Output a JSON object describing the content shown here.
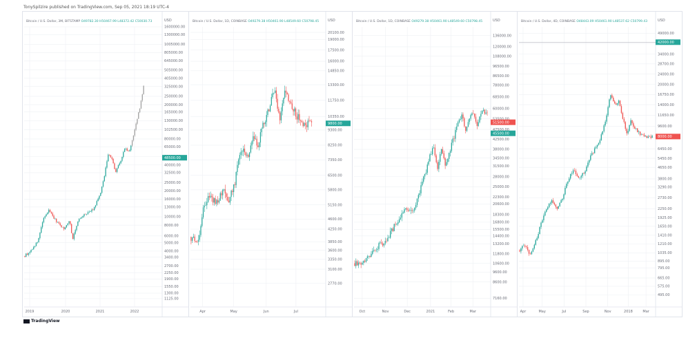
{
  "header": {
    "text": "TonySpilzire published on TradingView.com, Sep 05, 2021 18:19 UTC-4"
  },
  "footer": {
    "logo_text": "TradingView"
  },
  "colors": {
    "up": "#26a69a",
    "down": "#ef5350",
    "neutral": "#9e9e9e",
    "grid": "#eef0f4",
    "axis_text": "#6a6d78"
  },
  "chart_data": [
    {
      "type": "candlestick",
      "legend": {
        "symbol": "Bitcoin / U.S. Dollar, 3M, BITSTAMP",
        "ohlc": "O49782.30  H50467.99  L48372.42  C50030.73"
      },
      "scale": "log",
      "ylim": [
        900,
        1600000
      ],
      "y_ticks": [
        1125,
        1300,
        1550,
        1900,
        2250,
        2700,
        3400,
        4000,
        5000,
        6000,
        8000,
        10000,
        13000,
        16000,
        20000,
        25000,
        32500,
        40000,
        50000,
        65000,
        80000,
        102500,
        130000,
        165000,
        200000,
        250000,
        325000,
        405000,
        505000,
        645000,
        805000,
        1005000,
        1300000,
        1600000
      ],
      "y_tick_labels": [
        "1125.00",
        "1300.00",
        "1550.00",
        "1900.00",
        "2250.00",
        "2700.00",
        "3400.00",
        "4000.00",
        "5000.00",
        "6000.00",
        "8000.00",
        "10000.00",
        "13000.00",
        "16000.00",
        "20000.00",
        "25000.00",
        "32500.00",
        "40000.00",
        "50000.00",
        "65000.00",
        "80000.00",
        "102500.00",
        "130000.00",
        "165000.00",
        "200000.00",
        "250000.00",
        "325000.00",
        "405000.00",
        "505000.00",
        "645000.00",
        "805000.00",
        "1005000.00",
        "1300000.00",
        "1600000.00"
      ],
      "y_unit": "USD",
      "x_labels": [
        "2019",
        "2020",
        "2021",
        "2022"
      ],
      "x_label_positions": [
        0.04,
        0.3,
        0.55,
        0.8
      ],
      "last_price": 48500,
      "last_price_label": "48500.00",
      "last_price_color": "#26a69a",
      "path": [
        {
          "t": 0,
          "p": 3500
        },
        {
          "t": 0.04,
          "p": 3900
        },
        {
          "t": 0.1,
          "p": 5200
        },
        {
          "t": 0.14,
          "p": 9500
        },
        {
          "t": 0.18,
          "p": 12000
        },
        {
          "t": 0.23,
          "p": 9000
        },
        {
          "t": 0.29,
          "p": 7200
        },
        {
          "t": 0.33,
          "p": 9200
        },
        {
          "t": 0.35,
          "p": 5500
        },
        {
          "t": 0.39,
          "p": 9000
        },
        {
          "t": 0.45,
          "p": 11000
        },
        {
          "t": 0.5,
          "p": 12000
        },
        {
          "t": 0.55,
          "p": 18000
        },
        {
          "t": 0.58,
          "p": 29000
        },
        {
          "t": 0.61,
          "p": 55000
        },
        {
          "t": 0.64,
          "p": 45000
        },
        {
          "t": 0.66,
          "p": 33000
        },
        {
          "t": 0.7,
          "p": 45000
        },
        {
          "t": 0.73,
          "p": 63000
        },
        {
          "t": 0.76,
          "p": 55000
        },
        {
          "t": 0.8,
          "p": 100000
        },
        {
          "t": 0.84,
          "p": 190000
        },
        {
          "t": 0.87,
          "p": 360000
        }
      ],
      "projection_start": 0.78,
      "candle_count": 95
    },
    {
      "type": "candlestick",
      "legend": {
        "symbol": "Bitcoin / U.S. Dollar, 1D, COINBASE",
        "ohlc": "O49279.38  H50461.90  L48549.60  C50798.45"
      },
      "scale": "log",
      "ylim": [
        2300,
        21000
      ],
      "y_ticks": [
        2770,
        3100,
        3350,
        3600,
        3850,
        4250,
        4600,
        5150,
        5800,
        6500,
        7350,
        8250,
        9300,
        10350,
        11750,
        13300,
        14850,
        16000,
        17500,
        19000,
        20100
      ],
      "y_tick_labels": [
        "2770.00",
        "3100.00",
        "3350.00",
        "3600.00",
        "3850.00",
        "4250.00",
        "4600.00",
        "5150.00",
        "5800.00",
        "6500.00",
        "7350.00",
        "8250.00",
        "9300.00",
        "10350.00",
        "11750.00",
        "13300.00",
        "14850.00",
        "16000.00",
        "17500.00",
        "19000.00",
        "20100.00"
      ],
      "y_unit": "USD",
      "x_labels": [
        "Apr",
        "May",
        "Jun",
        "Jul"
      ],
      "x_label_positions": [
        0.09,
        0.32,
        0.56,
        0.78
      ],
      "last_price": 9800,
      "last_price_label": "9800.00",
      "last_price_color": "#26a69a",
      "path": [
        {
          "t": 0,
          "p": 4000
        },
        {
          "t": 0.06,
          "p": 3950
        },
        {
          "t": 0.1,
          "p": 5200
        },
        {
          "t": 0.13,
          "p": 5400
        },
        {
          "t": 0.2,
          "p": 5300
        },
        {
          "t": 0.24,
          "p": 5800
        },
        {
          "t": 0.28,
          "p": 5300
        },
        {
          "t": 0.33,
          "p": 6100
        },
        {
          "t": 0.36,
          "p": 7800
        },
        {
          "t": 0.4,
          "p": 8000
        },
        {
          "t": 0.43,
          "p": 7400
        },
        {
          "t": 0.46,
          "p": 8700
        },
        {
          "t": 0.5,
          "p": 8300
        },
        {
          "t": 0.53,
          "p": 9500
        },
        {
          "t": 0.58,
          "p": 11000
        },
        {
          "t": 0.62,
          "p": 13000
        },
        {
          "t": 0.66,
          "p": 10000
        },
        {
          "t": 0.7,
          "p": 12800
        },
        {
          "t": 0.74,
          "p": 11300
        },
        {
          "t": 0.78,
          "p": 10500
        },
        {
          "t": 0.84,
          "p": 9800
        },
        {
          "t": 0.9,
          "p": 9700
        }
      ],
      "candle_count": 100
    },
    {
      "type": "candlestick",
      "legend": {
        "symbol": "Bitcoin / U.S. Dollar, 1D, COINBASE",
        "ohlc": "O49279.38  H50461.90  L48549.60  C50798.45"
      },
      "scale": "log",
      "ylim": [
        6500,
        150000
      ],
      "y_ticks": [
        7160,
        8600,
        9600,
        10600,
        11800,
        13200,
        14400,
        15500,
        16800,
        18300,
        20600,
        22300,
        25000,
        28000,
        31500,
        34500,
        38000,
        42500,
        47500,
        53500,
        60000,
        68500,
        78000,
        86500,
        96500,
        108000,
        120000,
        136000
      ],
      "y_tick_labels": [
        "7160.00",
        "8600.00",
        "9600.00",
        "10600.00",
        "11800.00",
        "13200.00",
        "14400.00",
        "15500.00",
        "16800.00",
        "18300.00",
        "20600.00",
        "22300.00",
        "25000.00",
        "28000.00",
        "31500.00",
        "34500.00",
        "38000.00",
        "42500.00",
        "47500.00",
        "53500.00",
        "60000.00",
        "68500.00",
        "78000.00",
        "86500.00",
        "96500.00",
        "108000.00",
        "120000.00",
        "136000.00"
      ],
      "y_unit": "USD",
      "x_labels": [
        "Oct",
        "Nov",
        "Dec",
        "2021",
        "Feb",
        "Mar"
      ],
      "x_label_positions": [
        0.06,
        0.23,
        0.39,
        0.56,
        0.71,
        0.87
      ],
      "last_price": 51500,
      "last_price_label": "51500.00",
      "last_price_color": "#ef5350",
      "last_price_2": 45500,
      "last_price_2_label": "45500.00",
      "last_price_2_color": "#26a69a",
      "path": [
        {
          "t": 0,
          "p": 10600
        },
        {
          "t": 0.05,
          "p": 10500
        },
        {
          "t": 0.12,
          "p": 11500
        },
        {
          "t": 0.18,
          "p": 13000
        },
        {
          "t": 0.23,
          "p": 13500
        },
        {
          "t": 0.28,
          "p": 15500
        },
        {
          "t": 0.33,
          "p": 17500
        },
        {
          "t": 0.36,
          "p": 19000
        },
        {
          "t": 0.4,
          "p": 19300
        },
        {
          "t": 0.43,
          "p": 18800
        },
        {
          "t": 0.48,
          "p": 23500
        },
        {
          "t": 0.52,
          "p": 29000
        },
        {
          "t": 0.55,
          "p": 34000
        },
        {
          "t": 0.58,
          "p": 40000
        },
        {
          "t": 0.61,
          "p": 31000
        },
        {
          "t": 0.64,
          "p": 38000
        },
        {
          "t": 0.67,
          "p": 32000
        },
        {
          "t": 0.71,
          "p": 39000
        },
        {
          "t": 0.75,
          "p": 48000
        },
        {
          "t": 0.79,
          "p": 57000
        },
        {
          "t": 0.82,
          "p": 46000
        },
        {
          "t": 0.86,
          "p": 58000
        },
        {
          "t": 0.9,
          "p": 50000
        },
        {
          "t": 0.94,
          "p": 60000
        },
        {
          "t": 0.98,
          "p": 55000
        }
      ],
      "candle_count": 105
    },
    {
      "type": "candlestick",
      "legend": {
        "symbol": "Bitcoin / U.S. Dollar, 4D, COINBASE",
        "ohlc": "O48443.09  H50461.90  L48537.62  C50799.43"
      },
      "scale": "log",
      "ylim": [
        400,
        55000
      ],
      "y_ticks": [
        495,
        575,
        665,
        795,
        895,
        1035,
        1210,
        1410,
        1650,
        1925,
        2250,
        2730,
        3290,
        3800,
        4650,
        5450,
        6450,
        7900,
        9600,
        11650,
        14000,
        16750,
        20000,
        24000,
        28700,
        34000,
        41000,
        49000
      ],
      "y_tick_labels": [
        "495.00",
        "575.00",
        "665.00",
        "795.00",
        "895.00",
        "1035.00",
        "1210.00",
        "1410.00",
        "1650.00",
        "1925.00",
        "2250.00",
        "2730.00",
        "3290.00",
        "3800.00",
        "4650.00",
        "5450.00",
        "6450.00",
        "7900.00",
        "9600.00",
        "11650.00",
        "14000.00",
        "16750.00",
        "20000.00",
        "24000.00",
        "28700.00",
        "34000.00",
        "41000.00",
        "49000.00"
      ],
      "y_unit": "USD",
      "x_labels": [
        "Apr",
        "May",
        "Jul",
        "Sep",
        "Nov",
        "2018",
        "Mar"
      ],
      "x_label_positions": [
        0.03,
        0.17,
        0.33,
        0.49,
        0.65,
        0.8,
        0.93
      ],
      "last_price": 8000,
      "last_price_label": "8000.00",
      "last_price_color": "#ef5350",
      "last_price_2": 42000,
      "last_price_2_label": "42000.00",
      "last_price_2_color": "#26a69a",
      "hline": 42000,
      "path": [
        {
          "t": 0,
          "p": 1080
        },
        {
          "t": 0.04,
          "p": 1200
        },
        {
          "t": 0.08,
          "p": 1000
        },
        {
          "t": 0.12,
          "p": 1250
        },
        {
          "t": 0.16,
          "p": 1700
        },
        {
          "t": 0.2,
          "p": 2200
        },
        {
          "t": 0.24,
          "p": 2600
        },
        {
          "t": 0.28,
          "p": 2300
        },
        {
          "t": 0.32,
          "p": 2700
        },
        {
          "t": 0.36,
          "p": 3800
        },
        {
          "t": 0.4,
          "p": 4400
        },
        {
          "t": 0.44,
          "p": 3900
        },
        {
          "t": 0.48,
          "p": 4200
        },
        {
          "t": 0.52,
          "p": 5600
        },
        {
          "t": 0.56,
          "p": 6500
        },
        {
          "t": 0.6,
          "p": 8000
        },
        {
          "t": 0.64,
          "p": 11000
        },
        {
          "t": 0.67,
          "p": 17000
        },
        {
          "t": 0.7,
          "p": 14000
        },
        {
          "t": 0.73,
          "p": 15000
        },
        {
          "t": 0.76,
          "p": 11000
        },
        {
          "t": 0.79,
          "p": 8500
        },
        {
          "t": 0.82,
          "p": 10500
        },
        {
          "t": 0.86,
          "p": 9000
        },
        {
          "t": 0.9,
          "p": 8200
        },
        {
          "t": 0.94,
          "p": 8000
        },
        {
          "t": 0.98,
          "p": 7900
        }
      ],
      "candle_count": 100
    }
  ]
}
